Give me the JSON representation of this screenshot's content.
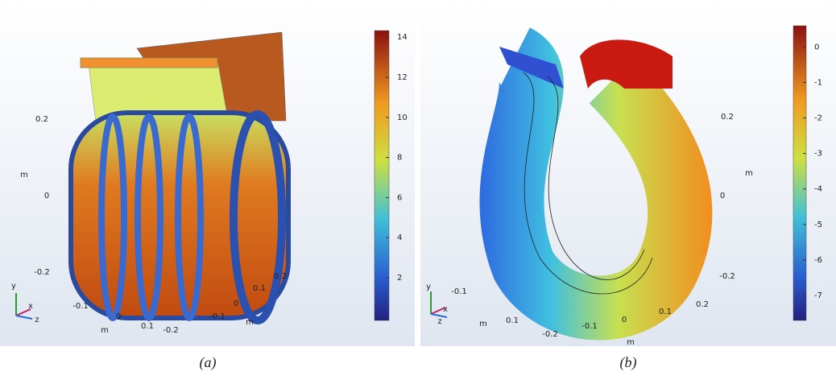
{
  "panels": [
    {
      "caption": "(a)",
      "colorbar_ticks": [
        2,
        4,
        6,
        8,
        10,
        12,
        14
      ],
      "axis_labels": [
        "0.2",
        "m",
        "0",
        "-0.2",
        "-0.1",
        "0",
        "0.1",
        "m",
        "-0.2",
        "-0.1",
        "0",
        "0.1",
        "0.2",
        "m"
      ],
      "triad": [
        "y",
        "x",
        "z"
      ]
    },
    {
      "caption": "(b)",
      "colorbar_ticks": [
        -7,
        -6,
        -5,
        -4,
        -3,
        -2,
        -1,
        0
      ],
      "axis_labels": [
        "0.2",
        "m",
        "0",
        "-0.2",
        "-0.1",
        "m",
        "0.1",
        "-0.2",
        "-0.1",
        "0",
        "0.1",
        "0.2",
        "m"
      ],
      "triad": [
        "y",
        "x",
        "z"
      ]
    }
  ]
}
